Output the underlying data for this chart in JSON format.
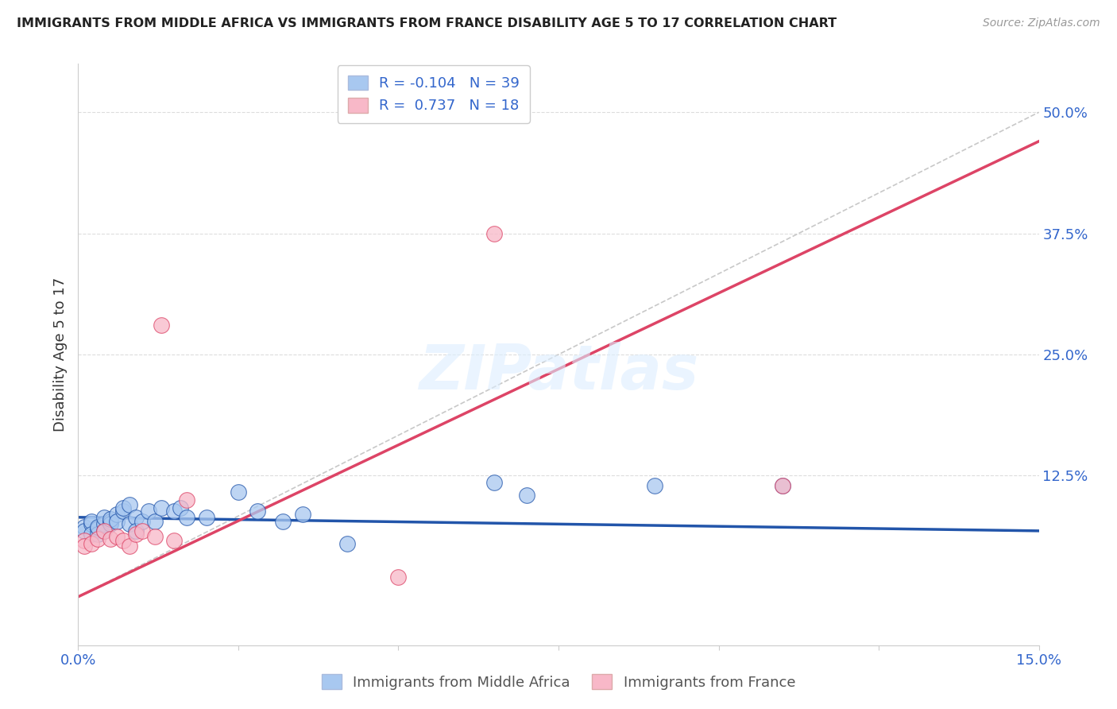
{
  "title": "IMMIGRANTS FROM MIDDLE AFRICA VS IMMIGRANTS FROM FRANCE DISABILITY AGE 5 TO 17 CORRELATION CHART",
  "source": "Source: ZipAtlas.com",
  "ylabel_label": "Disability Age 5 to 17",
  "xlim": [
    0.0,
    0.15
  ],
  "ylim": [
    -0.05,
    0.55
  ],
  "ytick_labels_right": [
    "50.0%",
    "37.5%",
    "25.0%",
    "12.5%"
  ],
  "ytick_vals_right": [
    0.5,
    0.375,
    0.25,
    0.125
  ],
  "watermark": "ZIPatlas",
  "blue_color": "#a8c8f0",
  "pink_color": "#f8b8c8",
  "trendline_blue_color": "#2255aa",
  "trendline_pink_color": "#dd4466",
  "dashed_line_color": "#c8c8c8",
  "blue_scatter_x": [
    0.001,
    0.001,
    0.002,
    0.002,
    0.002,
    0.003,
    0.003,
    0.003,
    0.004,
    0.004,
    0.004,
    0.005,
    0.005,
    0.005,
    0.006,
    0.006,
    0.007,
    0.007,
    0.008,
    0.008,
    0.009,
    0.009,
    0.01,
    0.011,
    0.012,
    0.013,
    0.015,
    0.016,
    0.017,
    0.02,
    0.025,
    0.028,
    0.032,
    0.035,
    0.042,
    0.065,
    0.07,
    0.09,
    0.11
  ],
  "blue_scatter_y": [
    0.072,
    0.068,
    0.075,
    0.078,
    0.065,
    0.07,
    0.065,
    0.072,
    0.075,
    0.068,
    0.082,
    0.078,
    0.075,
    0.08,
    0.085,
    0.078,
    0.088,
    0.092,
    0.095,
    0.075,
    0.082,
    0.068,
    0.078,
    0.088,
    0.078,
    0.092,
    0.088,
    0.092,
    0.082,
    0.082,
    0.108,
    0.088,
    0.078,
    0.085,
    0.055,
    0.118,
    0.105,
    0.115,
    0.115
  ],
  "pink_scatter_x": [
    0.001,
    0.001,
    0.002,
    0.003,
    0.004,
    0.005,
    0.006,
    0.007,
    0.008,
    0.009,
    0.01,
    0.012,
    0.013,
    0.015,
    0.017,
    0.05,
    0.065,
    0.11
  ],
  "pink_scatter_y": [
    0.058,
    0.052,
    0.055,
    0.06,
    0.068,
    0.06,
    0.062,
    0.058,
    0.052,
    0.065,
    0.068,
    0.062,
    0.28,
    0.058,
    0.1,
    0.02,
    0.375,
    0.115
  ],
  "blue_trend_x": [
    0.0,
    0.15
  ],
  "blue_trend_y": [
    0.082,
    0.068
  ],
  "pink_trend_x": [
    0.0,
    0.15
  ],
  "pink_trend_y": [
    0.0,
    0.47
  ],
  "diag_line_x": [
    0.0,
    0.15
  ],
  "diag_line_y": [
    0.0,
    0.5
  ]
}
